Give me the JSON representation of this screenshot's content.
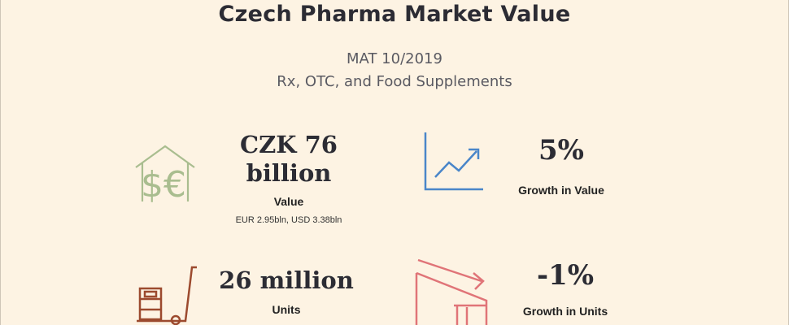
{
  "header": {
    "title": "Czech Pharma Market Value",
    "period": "MAT 10/2019",
    "scope": "Rx, OTC, and Food Supplements"
  },
  "metrics": {
    "value": {
      "headline_line1": "CZK 76",
      "headline_line2": "billion",
      "label": "Value",
      "note": "EUR 2.95bln, USD 3.38bln",
      "icon": "house-currency-icon",
      "color": "#a9bd8f"
    },
    "value_growth": {
      "headline": "5%",
      "label": "Growth in Value",
      "icon": "rising-chart-icon",
      "color": "#4a86c9"
    },
    "units": {
      "headline": "26 million",
      "label": "Units",
      "icon": "hand-truck-icon",
      "color": "#9c4a2e"
    },
    "units_growth": {
      "headline": "-1%",
      "label": "Growth in Units",
      "icon": "declining-chart-icon",
      "color": "#e07478"
    }
  }
}
